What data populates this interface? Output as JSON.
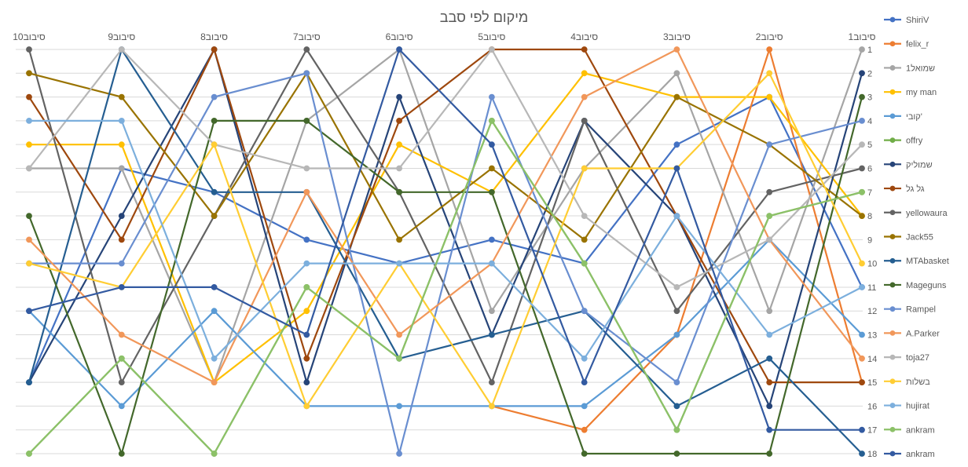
{
  "chart_data": {
    "type": "line",
    "title": "מיקום לפי סבב",
    "categories": [
      "סיבוב1",
      "סיבוב2",
      "סיבוב3",
      "סיבוב4",
      "סיבוב5",
      "סיבוב6",
      "סיבוב7",
      "סיבוב8",
      "סיבוב9",
      "סיבוב10"
    ],
    "x_reversed": true,
    "x_axis_position": "top",
    "y_reversed": true,
    "y_axis_position": "right",
    "ylim": [
      1,
      18
    ],
    "y_ticks": [
      1,
      2,
      3,
      4,
      5,
      6,
      7,
      8,
      9,
      10,
      11,
      12,
      13,
      14,
      15,
      16,
      17,
      18
    ],
    "grid": {
      "horizontal": true,
      "vertical": false
    },
    "legend": "right",
    "markers": true,
    "series": [
      {
        "name": "ShiriV",
        "color": "#4472C4",
        "values": [
          11,
          3,
          5,
          10,
          9,
          10,
          9,
          7,
          6,
          15
        ]
      },
      {
        "name": "felix_r",
        "color": "#ED7D31",
        "values": [
          15,
          1,
          13,
          17,
          16,
          null,
          null,
          null,
          null,
          null
        ]
      },
      {
        "name": "שמואל1",
        "color": "#A5A5A5",
        "values": [
          1,
          12,
          2,
          6,
          12,
          1,
          4,
          15,
          6,
          6
        ]
      },
      {
        "name": "my man",
        "color": "#FFC000",
        "values": [
          8,
          3,
          3,
          2,
          7,
          5,
          12,
          15,
          5,
          5
        ]
      },
      {
        "name": "קובי'",
        "color": "#5B9BD5",
        "values": [
          13,
          9,
          13,
          16,
          16,
          16,
          16,
          12,
          16,
          12
        ]
      },
      {
        "name": "offry",
        "color": "#70AD47",
        "values": [
          7,
          8,
          17,
          10,
          4,
          14,
          11,
          18,
          14,
          18
        ]
      },
      {
        "name": "שמוליק",
        "color": "#264478",
        "values": [
          2,
          16,
          8,
          4,
          13,
          3,
          15,
          1,
          8,
          15
        ]
      },
      {
        "name": "גל גל",
        "color": "#9E480E",
        "values": [
          15,
          15,
          8,
          1,
          1,
          4,
          14,
          1,
          9,
          3
        ]
      },
      {
        "name": "yellowaura",
        "color": "#636363",
        "values": [
          6,
          7,
          12,
          4,
          15,
          7,
          1,
          8,
          15,
          1
        ]
      },
      {
        "name": "Jack55",
        "color": "#997300",
        "values": [
          8,
          5,
          3,
          9,
          6,
          9,
          2,
          8,
          3,
          2
        ]
      },
      {
        "name": "MTAbasket",
        "color": "#255E91",
        "values": [
          18,
          14,
          16,
          12,
          13,
          14,
          7,
          7,
          1,
          15
        ]
      },
      {
        "name": "Mageguns",
        "color": "#43682B",
        "values": [
          3,
          18,
          18,
          18,
          7,
          7,
          4,
          4,
          18,
          8
        ]
      },
      {
        "name": "Rampel",
        "color": "#698ED0",
        "values": [
          4,
          5,
          15,
          12,
          3,
          18,
          2,
          3,
          10,
          10
        ]
      },
      {
        "name": "A.Parker",
        "color": "#F1975A",
        "values": [
          14,
          9,
          1,
          3,
          10,
          13,
          7,
          15,
          13,
          9
        ]
      },
      {
        "name": "toja27",
        "color": "#B7B7B7",
        "values": [
          5,
          9,
          11,
          8,
          1,
          6,
          6,
          5,
          1,
          6
        ]
      },
      {
        "name": "בשלות",
        "color": "#FFCD33",
        "values": [
          10,
          2,
          6,
          6,
          16,
          10,
          16,
          5,
          11,
          10
        ]
      },
      {
        "name": "hujirat",
        "color": "#7CAFDD",
        "values": [
          11,
          13,
          8,
          14,
          10,
          10,
          10,
          14,
          4,
          4
        ]
      },
      {
        "name": "ankram",
        "color": "#8CC168",
        "values": [
          7,
          8,
          17,
          10,
          4,
          14,
          11,
          18,
          14,
          18
        ]
      },
      {
        "name": "ankram",
        "color": "#335AA1",
        "values": [
          17,
          17,
          6,
          15,
          5,
          1,
          13,
          11,
          11,
          12
        ]
      }
    ]
  }
}
